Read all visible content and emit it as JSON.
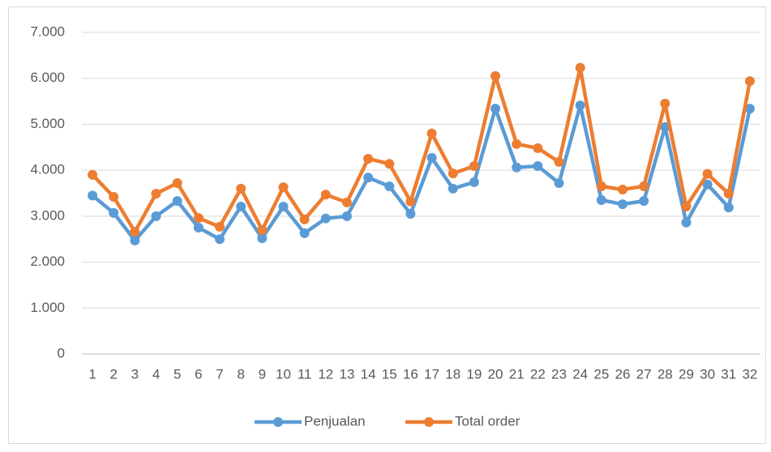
{
  "chart_data": {
    "type": "line",
    "categories": [
      "1",
      "2",
      "3",
      "4",
      "5",
      "6",
      "7",
      "8",
      "9",
      "10",
      "11",
      "12",
      "13",
      "14",
      "15",
      "16",
      "17",
      "18",
      "19",
      "20",
      "21",
      "22",
      "23",
      "24",
      "25",
      "26",
      "27",
      "28",
      "29",
      "30",
      "31",
      "32"
    ],
    "series": [
      {
        "name": "Penjualan",
        "color": "#5b9bd5",
        "values": [
          3450,
          3070,
          2470,
          3000,
          3330,
          2750,
          2500,
          3210,
          2520,
          3210,
          2630,
          2950,
          3000,
          3840,
          3650,
          3050,
          4270,
          3600,
          3740,
          5340,
          4060,
          4090,
          3720,
          5410,
          3350,
          3260,
          3330,
          4940,
          2860,
          3690,
          3190,
          5340
        ]
      },
      {
        "name": "Total order",
        "color": "#ed7d31",
        "values": [
          3900,
          3420,
          2660,
          3490,
          3720,
          2960,
          2770,
          3600,
          2700,
          3630,
          2930,
          3470,
          3300,
          4250,
          4140,
          3320,
          4800,
          3930,
          4090,
          6050,
          4570,
          4480,
          4180,
          6230,
          3650,
          3580,
          3650,
          5450,
          3210,
          3920,
          3490,
          5940
        ]
      }
    ],
    "ylim": [
      0,
      7000
    ],
    "yticks": [
      0,
      {
        "value": 1000,
        "label": "1.000"
      },
      {
        "value": 2000,
        "label": "2.000"
      },
      {
        "value": 3000,
        "label": "3.000"
      },
      {
        "value": 4000,
        "label": "4.000"
      },
      {
        "value": 5000,
        "label": "5.000"
      },
      {
        "value": 6000,
        "label": "6.000"
      },
      {
        "value": 7000,
        "label": "7.000"
      }
    ],
    "grid": true,
    "legend": "bottom"
  }
}
